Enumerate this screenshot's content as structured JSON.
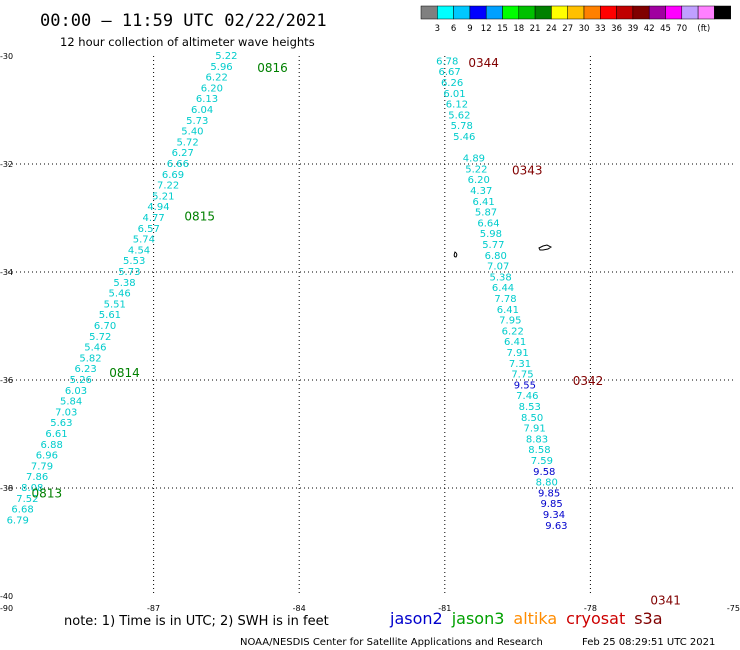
{
  "header": {
    "title": "00:00 – 11:59 UTC 02/22/2021",
    "subtitle": "12 hour collection of altimeter wave heights"
  },
  "colorbar": {
    "colors": [
      "#808080",
      "#00ffff",
      "#00c8ff",
      "#0000ff",
      "#00a0ff",
      "#00ff00",
      "#00c000",
      "#008000",
      "#ffff00",
      "#ffc000",
      "#ff8000",
      "#ff0000",
      "#c00000",
      "#800000",
      "#a000a0",
      "#ff00ff",
      "#c0a0ff",
      "#ff80ff",
      "#000000"
    ],
    "labels": [
      "3",
      "6",
      "9",
      "12",
      "15",
      "18",
      "21",
      "24",
      "27",
      "30",
      "33",
      "36",
      "39",
      "42",
      "45",
      "70",
      "(ft)"
    ]
  },
  "footer": {
    "note": "note:  1) Time is in UTC;  2) SWH is in feet",
    "credit": "NOAA/NESDIS Center for Satellite Applications and Research",
    "timestamp": "Feb 25 08:29:51 UTC 2021",
    "legend": [
      {
        "name": "jason2",
        "color": "#0000cc"
      },
      {
        "name": "jason3",
        "color": "#00a000"
      },
      {
        "name": "altika",
        "color": "#ff8c00"
      },
      {
        "name": "cryosat",
        "color": "#cc0000"
      },
      {
        "name": "s3a",
        "color": "#800000"
      }
    ]
  },
  "chart_data": {
    "type": "scatter",
    "xlim": [
      -90,
      -75
    ],
    "ylim": [
      -40,
      -30
    ],
    "x_ticks": [
      -90,
      -87,
      -84,
      -81,
      -78,
      -75
    ],
    "y_ticks": [
      -30,
      -32,
      -34,
      -36,
      -38,
      -40
    ],
    "grid": true,
    "colors": {
      "cyan": "#00cccc",
      "blue": "#0000cc",
      "green": "#008000",
      "maroon": "#800000"
    },
    "tracks": [
      {
        "satellite": "jason3",
        "time_labels": [
          {
            "text": "0816",
            "x": -84.55,
            "y": -30.22
          },
          {
            "text": "0815",
            "x": -86.05,
            "y": -32.97
          },
          {
            "text": "0814",
            "x": -87.6,
            "y": -35.87
          },
          {
            "text": "0813",
            "x": -89.2,
            "y": -38.1
          }
        ],
        "points": [
          {
            "x": -85.5,
            "y": -30.0,
            "v": "5.22",
            "c": "cyan"
          },
          {
            "x": -85.6,
            "y": -30.2,
            "v": "5.96",
            "c": "cyan"
          },
          {
            "x": -85.7,
            "y": -30.4,
            "v": "6.22",
            "c": "cyan"
          },
          {
            "x": -85.8,
            "y": -30.6,
            "v": "6.20",
            "c": "cyan"
          },
          {
            "x": -85.9,
            "y": -30.8,
            "v": "6.13",
            "c": "cyan"
          },
          {
            "x": -86.0,
            "y": -31.0,
            "v": "6.04",
            "c": "cyan"
          },
          {
            "x": -86.1,
            "y": -31.2,
            "v": "5.73",
            "c": "cyan"
          },
          {
            "x": -86.2,
            "y": -31.4,
            "v": "5.40",
            "c": "cyan"
          },
          {
            "x": -86.3,
            "y": -31.6,
            "v": "5.72",
            "c": "cyan"
          },
          {
            "x": -86.4,
            "y": -31.8,
            "v": "6.27",
            "c": "cyan"
          },
          {
            "x": -86.5,
            "y": -32.0,
            "v": "6.66",
            "c": "cyan"
          },
          {
            "x": -86.6,
            "y": -32.2,
            "v": "6.69",
            "c": "cyan"
          },
          {
            "x": -86.7,
            "y": -32.4,
            "v": "7.22",
            "c": "cyan"
          },
          {
            "x": -86.8,
            "y": -32.6,
            "v": "5.21",
            "c": "cyan"
          },
          {
            "x": -86.9,
            "y": -32.8,
            "v": "4.94",
            "c": "cyan"
          },
          {
            "x": -87.0,
            "y": -33.0,
            "v": "4.77",
            "c": "cyan"
          },
          {
            "x": -87.1,
            "y": -33.2,
            "v": "6.57",
            "c": "cyan"
          },
          {
            "x": -87.2,
            "y": -33.4,
            "v": "5.74",
            "c": "cyan"
          },
          {
            "x": -87.3,
            "y": -33.6,
            "v": "4.54",
            "c": "cyan"
          },
          {
            "x": -87.4,
            "y": -33.8,
            "v": "5.53",
            "c": "cyan"
          },
          {
            "x": -87.5,
            "y": -34.0,
            "v": "5.73",
            "c": "cyan"
          },
          {
            "x": -87.6,
            "y": -34.2,
            "v": "5.38",
            "c": "cyan"
          },
          {
            "x": -87.7,
            "y": -34.4,
            "v": "5.46",
            "c": "cyan"
          },
          {
            "x": -87.8,
            "y": -34.6,
            "v": "5.51",
            "c": "cyan"
          },
          {
            "x": -87.9,
            "y": -34.8,
            "v": "5.61",
            "c": "cyan"
          },
          {
            "x": -88.0,
            "y": -35.0,
            "v": "6.70",
            "c": "cyan"
          },
          {
            "x": -88.1,
            "y": -35.2,
            "v": "5.72",
            "c": "cyan"
          },
          {
            "x": -88.2,
            "y": -35.4,
            "v": "5.46",
            "c": "cyan"
          },
          {
            "x": -88.3,
            "y": -35.6,
            "v": "5.82",
            "c": "cyan"
          },
          {
            "x": -88.4,
            "y": -35.8,
            "v": "6.23",
            "c": "cyan"
          },
          {
            "x": -88.5,
            "y": -36.0,
            "v": "5.26",
            "c": "cyan"
          },
          {
            "x": -88.6,
            "y": -36.2,
            "v": "6.03",
            "c": "cyan"
          },
          {
            "x": -88.7,
            "y": -36.4,
            "v": "5.84",
            "c": "cyan"
          },
          {
            "x": -88.8,
            "y": -36.6,
            "v": "7.03",
            "c": "cyan"
          },
          {
            "x": -88.9,
            "y": -36.8,
            "v": "5.63",
            "c": "cyan"
          },
          {
            "x": -89.0,
            "y": -37.0,
            "v": "6.61",
            "c": "cyan"
          },
          {
            "x": -89.1,
            "y": -37.2,
            "v": "6.88",
            "c": "cyan"
          },
          {
            "x": -89.2,
            "y": -37.4,
            "v": "6.96",
            "c": "cyan"
          },
          {
            "x": -89.3,
            "y": -37.6,
            "v": "7.79",
            "c": "cyan"
          },
          {
            "x": -89.4,
            "y": -37.8,
            "v": "7.86",
            "c": "cyan"
          },
          {
            "x": -89.5,
            "y": -38.0,
            "v": "8.08",
            "c": "cyan"
          },
          {
            "x": -89.6,
            "y": -38.2,
            "v": "7.52",
            "c": "cyan"
          },
          {
            "x": -89.7,
            "y": -38.4,
            "v": "6.68",
            "c": "cyan"
          },
          {
            "x": -89.8,
            "y": -38.6,
            "v": "6.79",
            "c": "cyan"
          }
        ]
      },
      {
        "satellite": "s3a",
        "time_labels": [
          {
            "text": "0344",
            "x": -80.2,
            "y": -30.13
          },
          {
            "text": "0343",
            "x": -79.3,
            "y": -32.12
          },
          {
            "text": "0342",
            "x": -78.05,
            "y": -36.02
          },
          {
            "text": "0341",
            "x": -76.45,
            "y": -40.08
          }
        ],
        "points": [
          {
            "x": -80.95,
            "y": -30.1,
            "v": "6.78",
            "c": "cyan"
          },
          {
            "x": -80.9,
            "y": -30.3,
            "v": "6.67",
            "c": "cyan"
          },
          {
            "x": -80.85,
            "y": -30.5,
            "v": "6.26",
            "c": "cyan"
          },
          {
            "x": -80.8,
            "y": -30.7,
            "v": "6.01",
            "c": "cyan"
          },
          {
            "x": -80.75,
            "y": -30.9,
            "v": "6.12",
            "c": "cyan"
          },
          {
            "x": -80.7,
            "y": -31.1,
            "v": "5.62",
            "c": "cyan"
          },
          {
            "x": -80.65,
            "y": -31.3,
            "v": "5.78",
            "c": "cyan"
          },
          {
            "x": -80.6,
            "y": -31.5,
            "v": "5.46",
            "c": "cyan"
          },
          {
            "x": -80.4,
            "y": -31.9,
            "v": "4.89",
            "c": "cyan"
          },
          {
            "x": -80.35,
            "y": -32.1,
            "v": "5.22",
            "c": "cyan"
          },
          {
            "x": -80.3,
            "y": -32.3,
            "v": "6.20",
            "c": "cyan"
          },
          {
            "x": -80.25,
            "y": -32.5,
            "v": "4.37",
            "c": "cyan"
          },
          {
            "x": -80.2,
            "y": -32.7,
            "v": "6.41",
            "c": "cyan"
          },
          {
            "x": -80.15,
            "y": -32.9,
            "v": "5.87",
            "c": "cyan"
          },
          {
            "x": -80.1,
            "y": -33.1,
            "v": "6.64",
            "c": "cyan"
          },
          {
            "x": -80.05,
            "y": -33.3,
            "v": "5.98",
            "c": "cyan"
          },
          {
            "x": -80.0,
            "y": -33.5,
            "v": "5.77",
            "c": "cyan"
          },
          {
            "x": -79.95,
            "y": -33.7,
            "v": "6.80",
            "c": "cyan"
          },
          {
            "x": -79.9,
            "y": -33.9,
            "v": "7.07",
            "c": "cyan"
          },
          {
            "x": -79.85,
            "y": -34.1,
            "v": "5.38",
            "c": "cyan"
          },
          {
            "x": -79.8,
            "y": -34.3,
            "v": "6.44",
            "c": "cyan"
          },
          {
            "x": -79.75,
            "y": -34.5,
            "v": "7.78",
            "c": "cyan"
          },
          {
            "x": -79.7,
            "y": -34.7,
            "v": "6.41",
            "c": "cyan"
          },
          {
            "x": -79.65,
            "y": -34.9,
            "v": "7.95",
            "c": "cyan"
          },
          {
            "x": -79.6,
            "y": -35.1,
            "v": "6.22",
            "c": "cyan"
          },
          {
            "x": -79.55,
            "y": -35.3,
            "v": "6.41",
            "c": "cyan"
          },
          {
            "x": -79.5,
            "y": -35.5,
            "v": "7.91",
            "c": "cyan"
          },
          {
            "x": -79.45,
            "y": -35.7,
            "v": "7.31",
            "c": "cyan"
          },
          {
            "x": -79.4,
            "y": -35.9,
            "v": "7.75",
            "c": "cyan"
          },
          {
            "x": -79.35,
            "y": -36.1,
            "v": "9.55",
            "c": "blue"
          },
          {
            "x": -79.3,
            "y": -36.3,
            "v": "7.46",
            "c": "cyan"
          },
          {
            "x": -79.25,
            "y": -36.5,
            "v": "8.53",
            "c": "cyan"
          },
          {
            "x": -79.2,
            "y": -36.7,
            "v": "8.50",
            "c": "cyan"
          },
          {
            "x": -79.15,
            "y": -36.9,
            "v": "7.91",
            "c": "cyan"
          },
          {
            "x": -79.1,
            "y": -37.1,
            "v": "8.83",
            "c": "cyan"
          },
          {
            "x": -79.05,
            "y": -37.3,
            "v": "8.58",
            "c": "cyan"
          },
          {
            "x": -79.0,
            "y": -37.5,
            "v": "7.59",
            "c": "cyan"
          },
          {
            "x": -78.95,
            "y": -37.7,
            "v": "9.58",
            "c": "blue"
          },
          {
            "x": -78.9,
            "y": -37.9,
            "v": "8.80",
            "c": "cyan"
          },
          {
            "x": -78.85,
            "y": -38.1,
            "v": "9.85",
            "c": "blue"
          },
          {
            "x": -78.8,
            "y": -38.3,
            "v": "9.85",
            "c": "blue"
          },
          {
            "x": -78.75,
            "y": -38.5,
            "v": "9.34",
            "c": "blue"
          },
          {
            "x": -78.7,
            "y": -38.7,
            "v": "9.63",
            "c": "blue"
          }
        ]
      }
    ]
  }
}
